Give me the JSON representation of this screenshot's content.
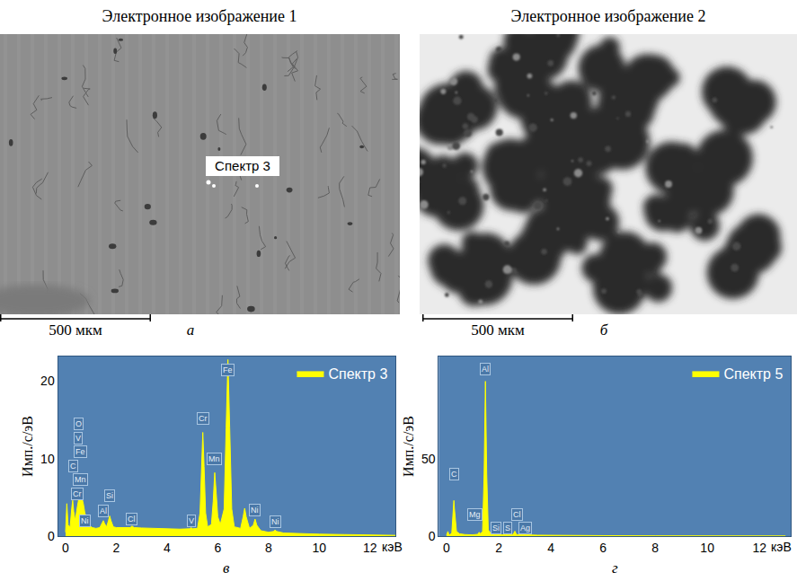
{
  "images": [
    {
      "title": "Электронное изображение 1",
      "labels": [
        "Спектр 3"
      ],
      "scale_bar": "500 мкм",
      "letter": "а"
    },
    {
      "title": "Электронное изображение 2",
      "scale_bar": "500 мкм",
      "letter": "б"
    }
  ],
  "chart_data": [
    {
      "type": "area",
      "letter": "в",
      "x_label": "кэВ",
      "y_label": "Имп./с/эВ",
      "x": [
        0,
        0.05,
        0.1,
        0.18,
        0.24,
        0.28,
        0.32,
        0.38,
        0.45,
        0.52,
        0.58,
        0.64,
        0.7,
        0.76,
        0.85,
        0.95,
        1.05,
        1.2,
        1.35,
        1.44,
        1.49,
        1.54,
        1.62,
        1.69,
        1.74,
        1.79,
        1.88,
        2.0,
        2.3,
        2.55,
        2.62,
        2.7,
        3.0,
        3.5,
        4.0,
        4.5,
        4.9,
        4.95,
        5.0,
        5.2,
        5.3,
        5.36,
        5.41,
        5.46,
        5.52,
        5.6,
        5.75,
        5.82,
        5.88,
        5.94,
        6.0,
        6.1,
        6.25,
        6.33,
        6.4,
        6.47,
        6.55,
        6.65,
        6.9,
        7.0,
        7.06,
        7.12,
        7.25,
        7.4,
        7.47,
        7.54,
        7.7,
        8.0,
        8.2,
        8.26,
        8.32,
        8.6,
        9.0,
        10.0,
        11.0,
        12.0,
        13.0
      ],
      "series": [
        {
          "name": "Спектр 3",
          "color": "#ffff00",
          "values": [
            0.5,
            4.2,
            1.4,
            1.2,
            3.5,
            4.6,
            3.2,
            2.0,
            3.5,
            4.8,
            5.2,
            5.0,
            4.2,
            3.0,
            2.2,
            1.4,
            1.1,
            1.0,
            1.1,
            1.6,
            2.0,
            1.6,
            1.2,
            2.0,
            2.6,
            2.0,
            1.2,
            1.1,
            1.1,
            1.1,
            1.3,
            1.1,
            1.05,
            1.0,
            0.95,
            0.9,
            0.95,
            1.1,
            0.95,
            1.0,
            3.0,
            9.0,
            13.4,
            9.0,
            3.0,
            1.2,
            1.5,
            4.5,
            8.2,
            5.5,
            2.5,
            1.5,
            3.5,
            14.0,
            22.8,
            14.0,
            3.5,
            1.2,
            1.0,
            2.5,
            3.6,
            2.5,
            1.0,
            1.4,
            2.2,
            1.4,
            0.7,
            0.5,
            0.6,
            0.8,
            0.6,
            0.4,
            0.35,
            0.25,
            0.2,
            0.15,
            0.1
          ]
        }
      ],
      "xlim": [
        -0.3,
        13.0
      ],
      "xticks": [
        0,
        2,
        4,
        6,
        8,
        10,
        12
      ],
      "ylim": [
        0,
        23.2
      ],
      "yticks": [
        0,
        10,
        20
      ],
      "grid": false,
      "legend": "top right",
      "annotations": [
        {
          "text": "O",
          "x": 0.5,
          "y": 14.5
        },
        {
          "text": "V",
          "x": 0.5,
          "y": 12.7
        },
        {
          "text": "Fe",
          "x": 0.6,
          "y": 10.9
        },
        {
          "text": "C",
          "x": 0.3,
          "y": 9.1
        },
        {
          "text": "Mn",
          "x": 0.6,
          "y": 7.3
        },
        {
          "text": "Cr",
          "x": 0.45,
          "y": 5.5
        },
        {
          "text": "Ni",
          "x": 0.75,
          "y": 2.0
        },
        {
          "text": "Al",
          "x": 1.49,
          "y": 3.3
        },
        {
          "text": "Si",
          "x": 1.74,
          "y": 5.2
        },
        {
          "text": "Cl",
          "x": 2.62,
          "y": 2.2
        },
        {
          "text": "V",
          "x": 4.95,
          "y": 2.0
        },
        {
          "text": "Cr",
          "x": 5.41,
          "y": 15.2
        },
        {
          "text": "Mn",
          "x": 5.88,
          "y": 10.0
        },
        {
          "text": "Fe",
          "x": 6.4,
          "y": 21.5
        },
        {
          "text": "Ni",
          "x": 7.47,
          "y": 3.4
        },
        {
          "text": "Ni",
          "x": 8.26,
          "y": 1.8
        }
      ]
    },
    {
      "type": "area",
      "letter": "г",
      "x_label": "кэВ",
      "y_label": "Имп./с/эВ",
      "x": [
        0,
        0.05,
        0.1,
        0.2,
        0.26,
        0.28,
        0.3,
        0.38,
        0.5,
        0.7,
        1.0,
        1.2,
        1.25,
        1.3,
        1.38,
        1.44,
        1.49,
        1.54,
        1.6,
        1.7,
        1.74,
        1.8,
        2.0,
        2.25,
        2.31,
        2.37,
        2.55,
        2.62,
        2.68,
        2.9,
        2.98,
        3.05,
        3.5,
        4.0,
        5.0,
        6.0,
        8.0,
        10.0,
        13.0
      ],
      "series": [
        {
          "name": "Спектр 5",
          "color": "#ffff00",
          "values": [
            0.5,
            3,
            0.5,
            2,
            18,
            23,
            18,
            3,
            1.5,
            1.0,
            0.8,
            1.2,
            2.5,
            1.5,
            3,
            40,
            100,
            40,
            4,
            1.5,
            2.2,
            1.2,
            0.8,
            0.9,
            1.6,
            0.9,
            1.0,
            3.2,
            1.0,
            0.8,
            1.2,
            0.8,
            0.6,
            0.5,
            0.4,
            0.3,
            0.2,
            0.15,
            0.1
          ]
        }
      ],
      "xlim": [
        -0.3,
        13.2
      ],
      "xticks": [
        0,
        2,
        4,
        6,
        8,
        10,
        12
      ],
      "ylim": [
        0,
        116
      ],
      "yticks": [
        0,
        50
      ],
      "grid": false,
      "legend": "top right",
      "annotations": [
        {
          "text": "C",
          "x": 0.28,
          "y": 40
        },
        {
          "text": "Al",
          "x": 1.49,
          "y": 108
        },
        {
          "text": "Mg",
          "x": 1.1,
          "y": 14
        },
        {
          "text": "Si",
          "x": 1.9,
          "y": 5
        },
        {
          "text": "S",
          "x": 2.35,
          "y": 5
        },
        {
          "text": "Cl",
          "x": 2.7,
          "y": 14
        },
        {
          "text": "Ag",
          "x": 3.0,
          "y": 5
        }
      ]
    }
  ]
}
